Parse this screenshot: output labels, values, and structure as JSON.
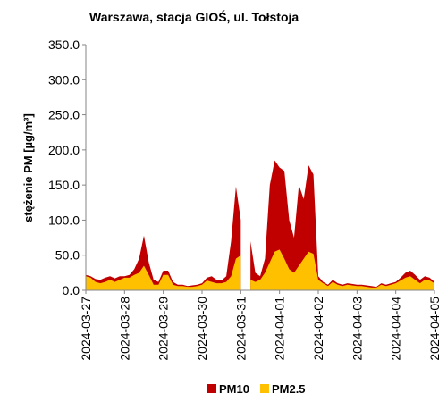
{
  "chart_data": {
    "type": "area",
    "title": "Warszawa, stacja GIOŚ, ul. Tołstoja",
    "y_label": "stężenie PM [µg/m³]",
    "categories": [
      "2024-03-27",
      null,
      null,
      null,
      null,
      null,
      null,
      null,
      "2024-03-28",
      null,
      null,
      null,
      null,
      null,
      null,
      null,
      "2024-03-29",
      null,
      null,
      null,
      null,
      null,
      null,
      null,
      "2024-03-30",
      null,
      null,
      null,
      null,
      null,
      null,
      null,
      "2024-03-31",
      null,
      null,
      null,
      null,
      null,
      null,
      null,
      "2024-04-01",
      null,
      null,
      null,
      null,
      null,
      null,
      null,
      "2024-04-02",
      null,
      null,
      null,
      null,
      null,
      null,
      null,
      "2024-04-03",
      null,
      null,
      null,
      null,
      null,
      null,
      null,
      "2024-04-04",
      null,
      null,
      null,
      null,
      null,
      null,
      null,
      "2024-04-05"
    ],
    "series": [
      {
        "name": "PM10",
        "color": "#c00000",
        "values": [
          22,
          20,
          16,
          15,
          18,
          20,
          17,
          20,
          20,
          22,
          30,
          45,
          78,
          40,
          15,
          12,
          28,
          28,
          12,
          8,
          8,
          6,
          7,
          8,
          10,
          18,
          20,
          15,
          14,
          20,
          70,
          148,
          100,
          null,
          70,
          25,
          20,
          45,
          150,
          185,
          175,
          170,
          100,
          75,
          150,
          130,
          178,
          165,
          20,
          12,
          8,
          15,
          10,
          8,
          10,
          9,
          8,
          8,
          7,
          6,
          5,
          10,
          8,
          10,
          12,
          18,
          25,
          28,
          22,
          15,
          20,
          18,
          12
        ]
      },
      {
        "name": "PM2.5",
        "color": "#ffc000",
        "values": [
          20,
          18,
          12,
          10,
          12,
          15,
          12,
          15,
          18,
          18,
          22,
          25,
          35,
          22,
          8,
          8,
          22,
          22,
          8,
          6,
          6,
          5,
          5,
          6,
          8,
          14,
          12,
          10,
          10,
          12,
          20,
          45,
          50,
          null,
          15,
          12,
          15,
          25,
          40,
          55,
          58,
          45,
          30,
          25,
          35,
          45,
          55,
          52,
          15,
          10,
          6,
          12,
          8,
          6,
          8,
          7,
          6,
          6,
          5,
          4,
          4,
          8,
          6,
          8,
          10,
          14,
          18,
          20,
          15,
          10,
          15,
          14,
          10
        ]
      }
    ],
    "ylim": [
      0,
      350
    ],
    "yticks": [
      {
        "value": 0,
        "label": "0.0"
      },
      {
        "value": 50,
        "label": "50.0"
      },
      {
        "value": 100,
        "label": "100.0"
      },
      {
        "value": 150,
        "label": "150.0"
      },
      {
        "value": 200,
        "label": "200.0"
      },
      {
        "value": 250,
        "label": "250.0"
      },
      {
        "value": 300,
        "label": "300.0"
      },
      {
        "value": 350,
        "label": "350.0"
      }
    ],
    "grid": false,
    "legend": "bottom"
  }
}
